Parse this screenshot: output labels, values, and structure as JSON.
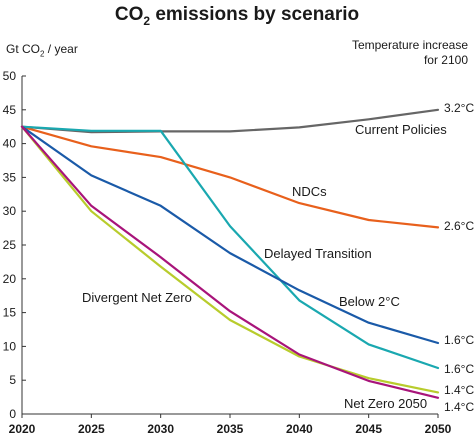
{
  "chart_data": {
    "type": "line",
    "title_prefix": "CO",
    "title_sub": "2",
    "title_suffix": " emissions by scenario",
    "ylabel_prefix": "Gt CO",
    "ylabel_sub": "2",
    "ylabel_suffix": " / year",
    "temp_header_line1": "Temperature increase",
    "temp_header_line2": "for 2100",
    "x": [
      2020,
      2025,
      2030,
      2035,
      2040,
      2045,
      2050
    ],
    "xlim": [
      2020,
      2050
    ],
    "ylim": [
      0,
      50
    ],
    "yticks": [
      0,
      5,
      10,
      15,
      20,
      25,
      30,
      35,
      40,
      45,
      50
    ],
    "grid": false,
    "series": [
      {
        "name": "Current Policies",
        "color": "#666666",
        "temp": "3.2°C",
        "points": [
          [
            2020,
            42.5
          ],
          [
            2025,
            41.7
          ],
          [
            2030,
            41.8
          ],
          [
            2035,
            41.8
          ],
          [
            2040,
            42.4
          ],
          [
            2045,
            43.6
          ],
          [
            2050,
            45.0
          ]
        ]
      },
      {
        "name": "NDCs",
        "color": "#e8601c",
        "temp": "2.6°C",
        "points": [
          [
            2020,
            42.5
          ],
          [
            2025,
            39.6
          ],
          [
            2030,
            38.0
          ],
          [
            2035,
            35.0
          ],
          [
            2040,
            31.2
          ],
          [
            2045,
            28.7
          ],
          [
            2050,
            27.6
          ]
        ]
      },
      {
        "name": "Delayed Transition",
        "color": "#1aa8b0",
        "temp": "1.6°C",
        "points": [
          [
            2020,
            42.5
          ],
          [
            2025,
            41.9
          ],
          [
            2030,
            41.9
          ],
          [
            2035,
            27.8
          ],
          [
            2040,
            16.8
          ],
          [
            2045,
            10.3
          ],
          [
            2050,
            6.8
          ]
        ]
      },
      {
        "name": "Below 2°C",
        "color": "#1a5aa8",
        "temp": "1.6°C",
        "points": [
          [
            2020,
            42.5
          ],
          [
            2025,
            35.3
          ],
          [
            2030,
            30.8
          ],
          [
            2035,
            23.8
          ],
          [
            2040,
            18.3
          ],
          [
            2045,
            13.5
          ],
          [
            2050,
            10.5
          ]
        ]
      },
      {
        "name": "Divergent Net Zero",
        "color": "#b8cc2c",
        "temp": "1.4°C",
        "points": [
          [
            2020,
            42.5
          ],
          [
            2025,
            30.0
          ],
          [
            2030,
            21.8
          ],
          [
            2035,
            13.9
          ],
          [
            2040,
            8.5
          ],
          [
            2045,
            5.3
          ],
          [
            2050,
            3.2
          ]
        ]
      },
      {
        "name": "Net Zero 2050",
        "color": "#a8147a",
        "temp": "1.4°C",
        "points": [
          [
            2020,
            42.5
          ],
          [
            2025,
            30.8
          ],
          [
            2030,
            23.2
          ],
          [
            2035,
            15.2
          ],
          [
            2040,
            8.8
          ],
          [
            2045,
            4.9
          ],
          [
            2050,
            2.4
          ]
        ]
      }
    ]
  }
}
